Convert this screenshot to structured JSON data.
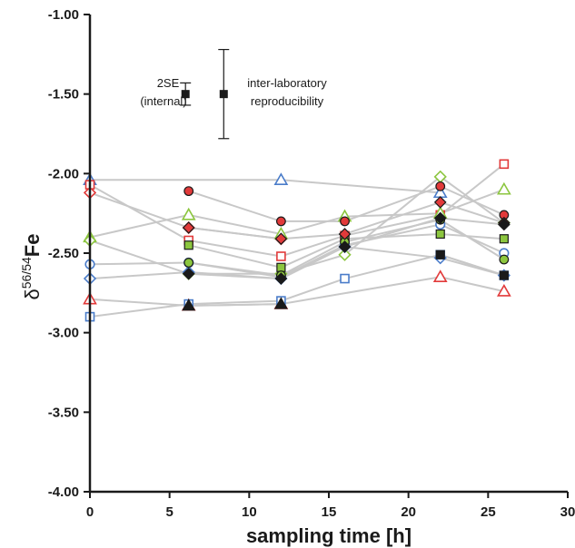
{
  "chart_data": {
    "type": "scatter",
    "xlabel": "sampling time [h]",
    "ylabel": {
      "base": "δ",
      "superscript": "56/54",
      "suffix": "Fe"
    },
    "xlim": [
      0,
      30
    ],
    "ylim": [
      -4.0,
      -1.0
    ],
    "x_ticks": [
      0,
      5,
      10,
      15,
      20,
      25,
      30
    ],
    "y_ticks": [
      -1.0,
      -1.5,
      -2.0,
      -2.5,
      -3.0,
      -3.5,
      -4.0
    ],
    "y_tick_labels": [
      "-1.00",
      "-1.50",
      "-2.00",
      "-2.50",
      "-3.00",
      "-3.50",
      "-4.00"
    ],
    "grid": false,
    "line_color": "#c8c8c8",
    "colors": {
      "red": "#e23a3a",
      "green": "#8cc63f",
      "blue": "#4a7cc9",
      "black": "#1a1a1a"
    },
    "legend": {
      "internal": {
        "label": "2SE",
        "sublabel": "(internal)",
        "x": 6.0,
        "y": -1.5,
        "err": 0.07
      },
      "interlab": {
        "label": "inter-laboratory",
        "sublabel": "reproducibility",
        "x": 8.4,
        "y": -1.5,
        "err": 0.28
      }
    },
    "series": [
      {
        "marker": "triangle",
        "color": "blue",
        "filled": false,
        "points": [
          [
            0,
            -2.04
          ],
          [
            12,
            -2.04
          ],
          [
            22,
            -2.12
          ]
        ]
      },
      {
        "marker": "diamond",
        "color": "red",
        "filled": false,
        "points": [
          [
            0,
            -2.12
          ],
          [
            6.2,
            -2.34
          ],
          [
            12,
            -2.41
          ]
        ]
      },
      {
        "marker": "square",
        "color": "red",
        "filled": false,
        "points": [
          [
            0,
            -2.07
          ],
          [
            6.2,
            -2.42
          ],
          [
            12,
            -2.52
          ],
          [
            16,
            -2.39
          ],
          [
            22,
            -2.26
          ],
          [
            26,
            -1.94
          ]
        ]
      },
      {
        "marker": "triangle",
        "color": "green",
        "filled": false,
        "points": [
          [
            0,
            -2.4
          ],
          [
            6.2,
            -2.26
          ],
          [
            12,
            -2.38
          ],
          [
            16,
            -2.27
          ],
          [
            22,
            -2.25
          ],
          [
            26,
            -2.1
          ]
        ]
      },
      {
        "marker": "diamond",
        "color": "green",
        "filled": false,
        "points": [
          [
            0,
            -2.42
          ],
          [
            6.2,
            -2.63
          ],
          [
            12,
            -2.63
          ],
          [
            16,
            -2.51
          ],
          [
            22,
            -2.02
          ],
          [
            26,
            -2.31
          ]
        ]
      },
      {
        "marker": "circle",
        "color": "blue",
        "filled": false,
        "points": [
          [
            0,
            -2.57
          ],
          [
            6.2,
            -2.56
          ],
          [
            12,
            -2.65
          ],
          [
            16,
            -2.45
          ],
          [
            22,
            -2.32
          ],
          [
            26,
            -2.5
          ]
        ]
      },
      {
        "marker": "diamond",
        "color": "blue",
        "filled": false,
        "points": [
          [
            0,
            -2.66
          ],
          [
            6.2,
            -2.62
          ],
          [
            12,
            -2.66
          ],
          [
            16,
            -2.46
          ],
          [
            22,
            -2.53
          ],
          [
            26,
            -2.64
          ]
        ]
      },
      {
        "marker": "triangle",
        "color": "red",
        "filled": false,
        "points": [
          [
            0,
            -2.79
          ],
          [
            6.2,
            -2.83
          ],
          [
            12,
            -2.82
          ],
          [
            22,
            -2.65
          ],
          [
            26,
            -2.74
          ]
        ]
      },
      {
        "marker": "square",
        "color": "blue",
        "filled": false,
        "points": [
          [
            0,
            -2.9
          ],
          [
            6.2,
            -2.82
          ],
          [
            12,
            -2.8
          ],
          [
            16,
            -2.66
          ],
          [
            22,
            -2.51
          ],
          [
            26,
            -2.64
          ]
        ]
      },
      {
        "marker": "circle",
        "color": "red",
        "filled": true,
        "points": [
          [
            6.2,
            -2.11
          ],
          [
            12,
            -2.3
          ],
          [
            16,
            -2.3
          ],
          [
            22,
            -2.08
          ],
          [
            26,
            -2.26
          ]
        ]
      },
      {
        "marker": "square",
        "color": "green",
        "filled": true,
        "points": [
          [
            6.2,
            -2.45
          ],
          [
            12,
            -2.59
          ],
          [
            16,
            -2.41
          ],
          [
            22,
            -2.38
          ],
          [
            26,
            -2.41
          ]
        ]
      },
      {
        "marker": "circle",
        "color": "green",
        "filled": true,
        "points": [
          [
            6.2,
            -2.56
          ],
          [
            12,
            -2.64
          ],
          [
            16,
            -2.43
          ],
          [
            22,
            -2.29
          ],
          [
            26,
            -2.54
          ]
        ]
      },
      {
        "marker": "diamond",
        "color": "red",
        "filled": true,
        "points": [
          [
            6.2,
            -2.34
          ],
          [
            12,
            -2.41
          ],
          [
            16,
            -2.38
          ],
          [
            22,
            -2.18
          ],
          [
            26,
            -2.31
          ]
        ]
      },
      {
        "marker": "diamond",
        "color": "black",
        "filled": true,
        "points": [
          [
            6.2,
            -2.63
          ],
          [
            12,
            -2.66
          ],
          [
            16,
            -2.46
          ],
          [
            22,
            -2.28
          ],
          [
            26,
            -2.32
          ]
        ]
      },
      {
        "marker": "triangle",
        "color": "black",
        "filled": true,
        "points": [
          [
            6.2,
            -2.83
          ],
          [
            12,
            -2.82
          ]
        ]
      },
      {
        "marker": "square",
        "color": "black",
        "filled": true,
        "points": [
          [
            22,
            -2.51
          ],
          [
            26,
            -2.64
          ]
        ]
      }
    ]
  }
}
